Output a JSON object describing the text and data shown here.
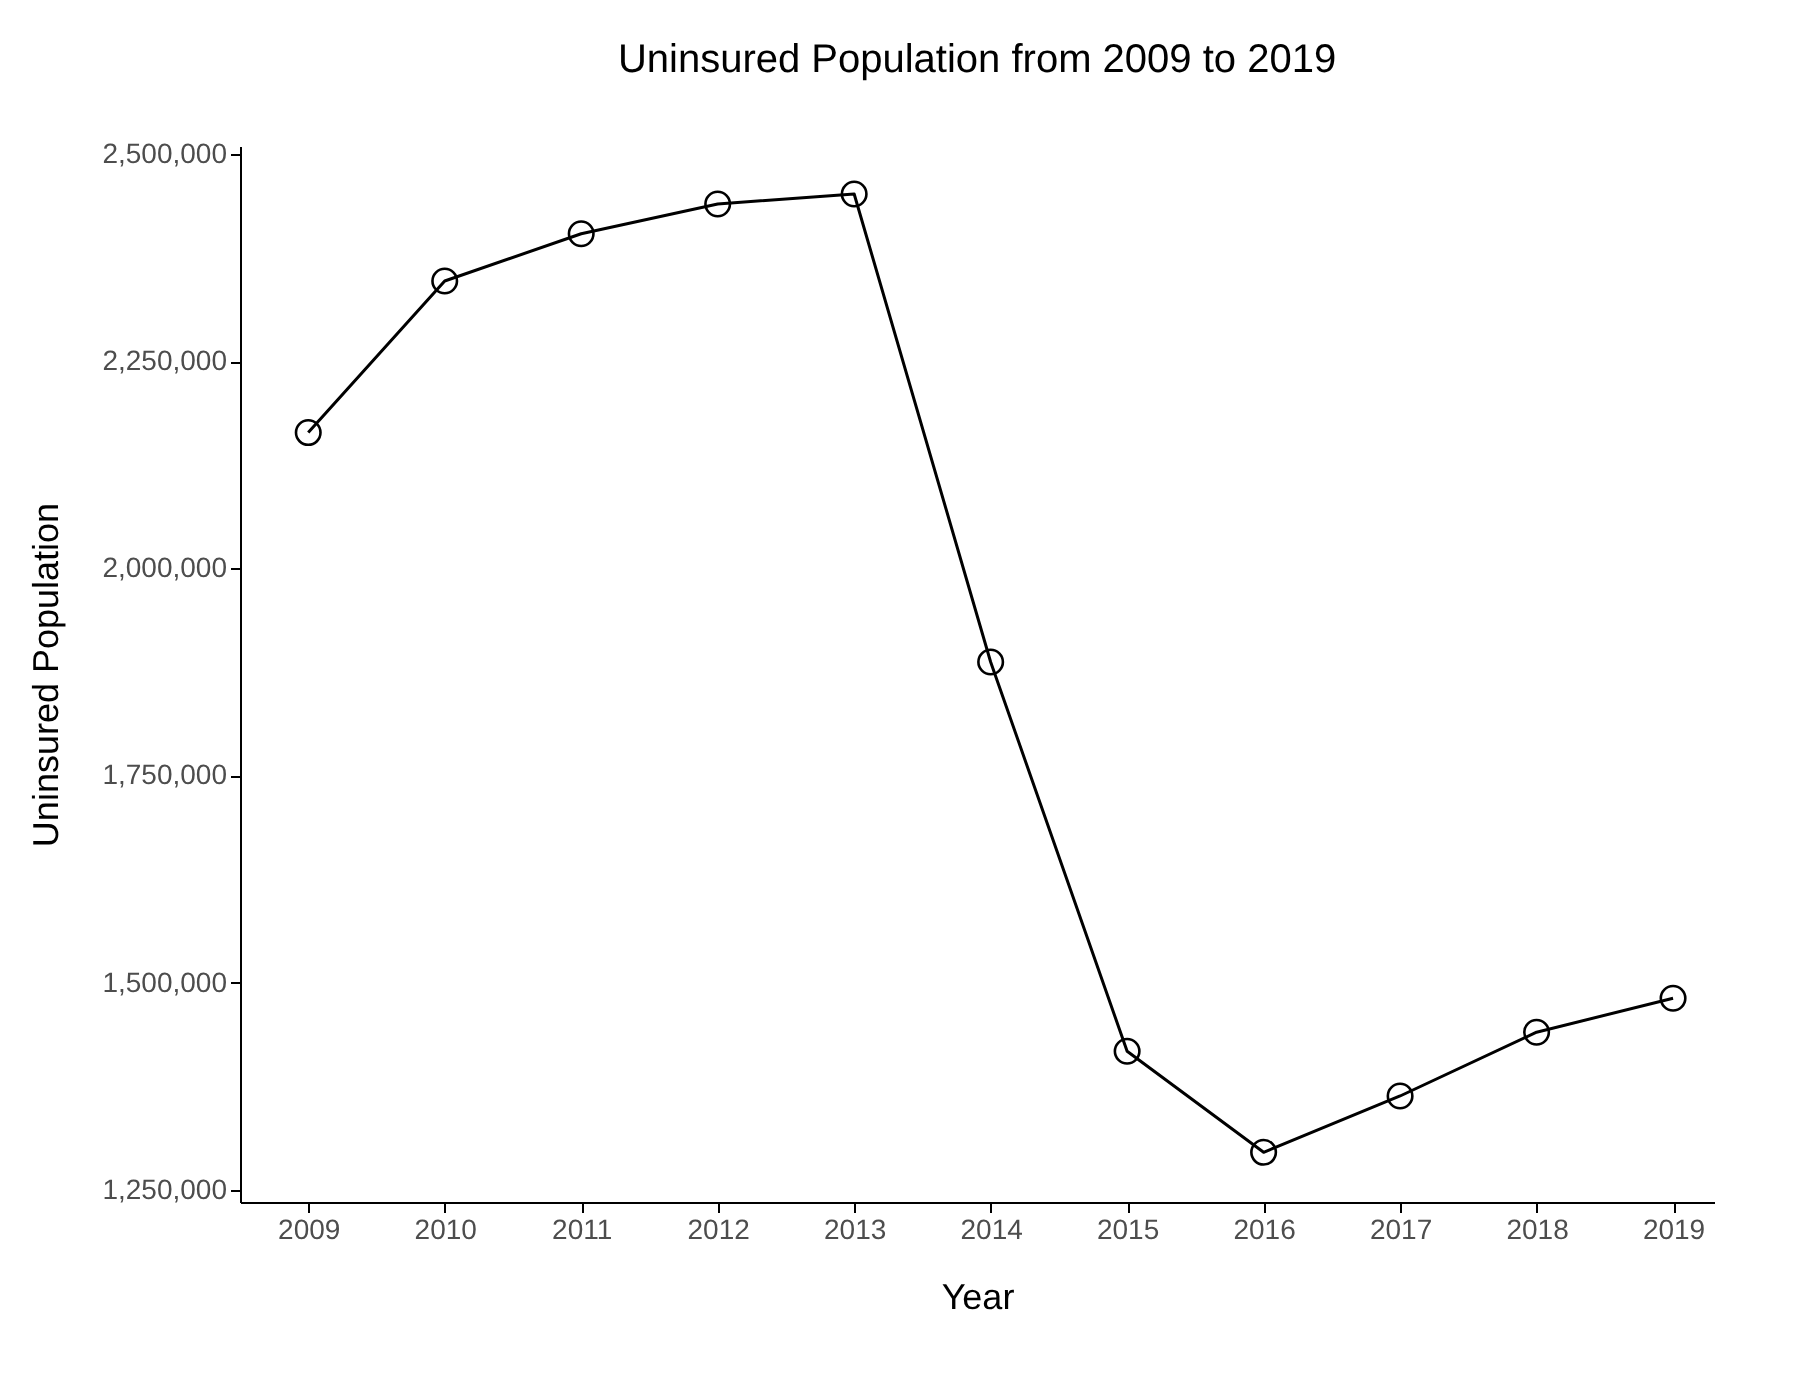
{
  "chart_data": {
    "type": "line",
    "title": "Uninsured Population from 2009 to 2019",
    "xlabel": "Year",
    "ylabel": "Uninsured Population",
    "x": [
      2009,
      2010,
      2011,
      2012,
      2013,
      2014,
      2015,
      2016,
      2017,
      2018,
      2019
    ],
    "series": [
      {
        "color": "#000000",
        "values": [
          2164000,
          2347000,
          2404000,
          2440000,
          2452000,
          1887000,
          1417000,
          1295000,
          1363000,
          1440000,
          1481000
        ]
      }
    ],
    "xlim": [
      2008.5,
      2019.3
    ],
    "xticks": [
      2009,
      2010,
      2011,
      2012,
      2013,
      2014,
      2015,
      2016,
      2017,
      2018,
      2019
    ],
    "ylim": [
      1235000,
      2510000
    ],
    "yticks": [
      {
        "value": 1250000,
        "label": "1,250,000"
      },
      {
        "value": 1500000,
        "label": "1,500,000"
      },
      {
        "value": 1750000,
        "label": "1,750,000"
      },
      {
        "value": 2000000,
        "label": "2,000,000"
      },
      {
        "value": 2250000,
        "label": "2,250,000"
      },
      {
        "value": 2500000,
        "label": "2,500,000"
      }
    ],
    "grid": false,
    "legend": false,
    "marker": "circle",
    "line_style": "solid"
  }
}
